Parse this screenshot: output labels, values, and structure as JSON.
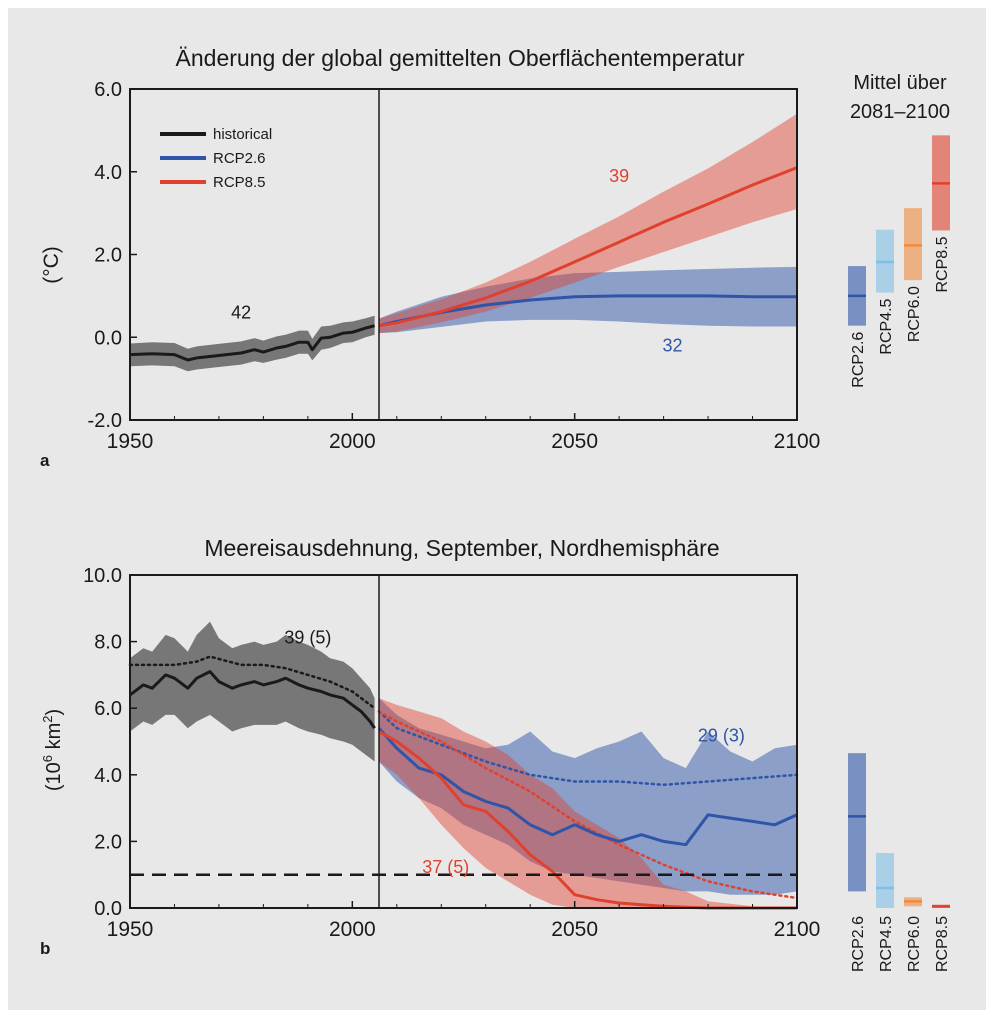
{
  "colors": {
    "historical": "#1a1a1a",
    "rcp26": "#2e55a8",
    "rcp45": "#7fc0e6",
    "rcp60": "#f08b3d",
    "rcp85": "#e0412e",
    "background": "#e8e8e8"
  },
  "chart_data": [
    {
      "type": "line",
      "panel_letter": "a",
      "title": "Änderung der global gemittelten Oberflächentemperatur",
      "ylabel": "(°C)",
      "xlim": [
        1950,
        2100
      ],
      "ylim": [
        -2.0,
        6.0
      ],
      "xticks": [
        "1950",
        "2000",
        "2050",
        "2100"
      ],
      "yticks": [
        "-2.0",
        "0.0",
        "2.0",
        "4.0",
        "6.0"
      ],
      "grid": false,
      "legend_position": "top-left",
      "legend": [
        "historical",
        "RCP2.6",
        "RCP8.5"
      ],
      "divider_year": 2006,
      "series": [
        {
          "name": "historical",
          "color": "#1a1a1a",
          "label": "42",
          "x": [
            1950,
            1955,
            1960,
            1963,
            1965,
            1970,
            1975,
            1978,
            1980,
            1983,
            1985,
            1988,
            1990,
            1991,
            1993,
            1995,
            1998,
            2000,
            2003,
            2005
          ],
          "y": [
            -0.42,
            -0.4,
            -0.42,
            -0.55,
            -0.5,
            -0.44,
            -0.38,
            -0.3,
            -0.36,
            -0.26,
            -0.22,
            -0.12,
            -0.12,
            -0.3,
            -0.02,
            0.0,
            0.1,
            0.12,
            0.22,
            0.28
          ],
          "lower": [
            -0.7,
            -0.68,
            -0.7,
            -0.82,
            -0.78,
            -0.72,
            -0.66,
            -0.58,
            -0.62,
            -0.54,
            -0.5,
            -0.4,
            -0.4,
            -0.56,
            -0.3,
            -0.26,
            -0.14,
            -0.12,
            0.0,
            0.06
          ],
          "upper": [
            -0.15,
            -0.12,
            -0.14,
            -0.28,
            -0.22,
            -0.16,
            -0.1,
            -0.02,
            -0.08,
            0.02,
            0.06,
            0.16,
            0.16,
            -0.04,
            0.26,
            0.28,
            0.36,
            0.38,
            0.46,
            0.52
          ]
        },
        {
          "name": "RCP2.6",
          "color": "#2e55a8",
          "label": "32",
          "x": [
            2006,
            2010,
            2020,
            2030,
            2040,
            2050,
            2060,
            2070,
            2080,
            2090,
            2100
          ],
          "y": [
            0.28,
            0.38,
            0.6,
            0.78,
            0.9,
            0.98,
            1.0,
            1.0,
            1.0,
            0.98,
            0.98
          ],
          "lower": [
            0.1,
            0.12,
            0.25,
            0.38,
            0.42,
            0.42,
            0.38,
            0.32,
            0.28,
            0.26,
            0.26
          ],
          "upper": [
            0.45,
            0.62,
            0.98,
            1.22,
            1.42,
            1.55,
            1.58,
            1.62,
            1.65,
            1.68,
            1.7
          ]
        },
        {
          "name": "RCP8.5",
          "color": "#e0412e",
          "label": "39",
          "x": [
            2006,
            2010,
            2020,
            2030,
            2040,
            2050,
            2060,
            2070,
            2080,
            2090,
            2100
          ],
          "y": [
            0.28,
            0.35,
            0.62,
            0.95,
            1.35,
            1.82,
            2.3,
            2.78,
            3.22,
            3.68,
            4.1
          ],
          "lower": [
            0.1,
            0.14,
            0.36,
            0.62,
            0.95,
            1.32,
            1.7,
            2.06,
            2.42,
            2.78,
            3.1
          ],
          "upper": [
            0.45,
            0.58,
            0.92,
            1.32,
            1.82,
            2.38,
            2.92,
            3.52,
            4.08,
            4.72,
            5.4
          ]
        }
      ],
      "side_bars": {
        "title_line1": "Mittel über",
        "title_line2": "2081–2100",
        "bars": [
          {
            "name": "RCP2.6",
            "color": "#2e55a8",
            "low": 0.28,
            "mean": 1.0,
            "high": 1.72
          },
          {
            "name": "RCP4.5",
            "color": "#7fc0e6",
            "low": 1.08,
            "mean": 1.82,
            "high": 2.6
          },
          {
            "name": "RCP6.0",
            "color": "#f08b3d",
            "low": 1.38,
            "mean": 2.22,
            "high": 3.12
          },
          {
            "name": "RCP8.5",
            "color": "#e0412e",
            "low": 2.58,
            "mean": 3.72,
            "high": 4.88
          }
        ]
      }
    },
    {
      "type": "line",
      "panel_letter": "b",
      "title": "Meereisausdehnung, September, Nordhemisphäre",
      "ylabel_main": "(10",
      "ylabel_sup6": "6",
      "ylabel_km": " km",
      "ylabel_sup2": "2",
      "ylabel_close": ")",
      "xlim": [
        1950,
        2100
      ],
      "ylim": [
        0.0,
        10.0
      ],
      "xticks": [
        "1950",
        "2000",
        "2050",
        "2100"
      ],
      "yticks": [
        "0.0",
        "2.0",
        "4.0",
        "6.0",
        "8.0",
        "10.0"
      ],
      "grid": false,
      "divider_year": 2006,
      "threshold": 1.0,
      "series": [
        {
          "name": "historical",
          "color": "#1a1a1a",
          "label": "39 (5)",
          "x": [
            1950,
            1953,
            1955,
            1958,
            1960,
            1963,
            1965,
            1968,
            1970,
            1973,
            1975,
            1978,
            1980,
            1983,
            1985,
            1988,
            1990,
            1993,
            1995,
            1998,
            2000,
            2002,
            2004,
            2005
          ],
          "y": [
            6.4,
            6.7,
            6.6,
            7.0,
            6.9,
            6.6,
            6.9,
            7.1,
            6.8,
            6.6,
            6.7,
            6.8,
            6.7,
            6.8,
            6.9,
            6.7,
            6.6,
            6.5,
            6.4,
            6.3,
            6.1,
            5.9,
            5.6,
            5.4
          ],
          "lower": [
            5.3,
            5.6,
            5.5,
            5.8,
            5.8,
            5.4,
            5.6,
            5.8,
            5.6,
            5.3,
            5.4,
            5.5,
            5.5,
            5.5,
            5.6,
            5.4,
            5.3,
            5.2,
            5.1,
            5.0,
            4.9,
            4.7,
            4.5,
            4.4
          ],
          "upper": [
            7.5,
            7.8,
            7.7,
            8.2,
            8.1,
            7.7,
            8.2,
            8.6,
            8.1,
            7.8,
            7.9,
            8.0,
            7.9,
            8.0,
            8.2,
            8.0,
            7.9,
            7.7,
            7.5,
            7.4,
            7.2,
            6.9,
            6.6,
            6.3
          ],
          "dotted_x": [
            1950,
            1960,
            1965,
            1968,
            1975,
            1980,
            1985,
            1990,
            1995,
            2000,
            2005
          ],
          "dotted_y": [
            7.3,
            7.3,
            7.4,
            7.55,
            7.3,
            7.3,
            7.2,
            7.0,
            6.8,
            6.5,
            6.0
          ]
        },
        {
          "name": "RCP2.6",
          "color": "#2e55a8",
          "label": "29 (3)",
          "x": [
            2006,
            2010,
            2015,
            2020,
            2025,
            2030,
            2035,
            2040,
            2045,
            2050,
            2055,
            2060,
            2065,
            2070,
            2075,
            2080,
            2085,
            2090,
            2095,
            2100
          ],
          "y": [
            5.4,
            4.8,
            4.2,
            4.0,
            3.5,
            3.2,
            3.0,
            2.5,
            2.2,
            2.5,
            2.2,
            2.0,
            2.2,
            2.0,
            1.9,
            2.8,
            2.7,
            2.6,
            2.5,
            2.8
          ],
          "lower": [
            4.4,
            3.8,
            3.3,
            3.0,
            2.5,
            2.2,
            1.9,
            1.4,
            1.1,
            1.0,
            0.9,
            0.8,
            0.7,
            0.6,
            0.5,
            0.5,
            0.4,
            0.4,
            0.4,
            0.5
          ],
          "upper": [
            6.3,
            5.8,
            5.4,
            5.2,
            5.0,
            4.8,
            4.9,
            5.3,
            4.7,
            4.5,
            4.8,
            5.0,
            5.3,
            4.5,
            4.2,
            5.3,
            4.7,
            4.4,
            4.8,
            4.9
          ],
          "dotted_x": [
            2006,
            2010,
            2020,
            2030,
            2040,
            2050,
            2060,
            2070,
            2080,
            2090,
            2100
          ],
          "dotted_y": [
            5.9,
            5.4,
            4.9,
            4.4,
            4.0,
            3.8,
            3.8,
            3.7,
            3.8,
            3.9,
            4.0
          ]
        },
        {
          "name": "RCP8.5",
          "color": "#e0412e",
          "label": "37 (5)",
          "x": [
            2006,
            2010,
            2015,
            2020,
            2025,
            2030,
            2035,
            2040,
            2045,
            2050,
            2055,
            2060,
            2065,
            2070,
            2075,
            2080,
            2090,
            2100
          ],
          "y": [
            5.3,
            5.0,
            4.5,
            3.9,
            3.1,
            2.9,
            2.3,
            1.6,
            1.1,
            0.4,
            0.25,
            0.15,
            0.1,
            0.05,
            0.02,
            0.0,
            0.0,
            0.0
          ],
          "lower": [
            4.4,
            4.0,
            3.3,
            2.5,
            1.8,
            1.2,
            0.8,
            0.4,
            0.1,
            0.0,
            0.0,
            0.0,
            0.0,
            0.0,
            0.0,
            0.0,
            0.0,
            0.0
          ],
          "upper": [
            6.3,
            6.1,
            5.9,
            5.7,
            5.3,
            5.0,
            4.6,
            4.0,
            3.6,
            2.9,
            2.5,
            2.1,
            1.5,
            0.7,
            0.5,
            0.2,
            0.05,
            0.02
          ],
          "dotted_x": [
            2006,
            2010,
            2020,
            2030,
            2040,
            2050,
            2060,
            2070,
            2080,
            2090,
            2100
          ],
          "dotted_y": [
            5.9,
            5.6,
            5.0,
            4.2,
            3.5,
            2.6,
            1.9,
            1.3,
            0.8,
            0.5,
            0.3
          ]
        }
      ],
      "side_bars": {
        "bars": [
          {
            "name": "RCP2.6",
            "color": "#2e55a8",
            "low": 0.5,
            "mean": 2.75,
            "high": 4.65
          },
          {
            "name": "RCP4.5",
            "color": "#7fc0e6",
            "low": 0.0,
            "mean": 0.6,
            "high": 1.65
          },
          {
            "name": "RCP6.0",
            "color": "#f08b3d",
            "low": 0.05,
            "mean": 0.2,
            "high": 0.32
          },
          {
            "name": "RCP8.5",
            "color": "#e0412e",
            "low": 0.0,
            "mean": 0.05,
            "high": 0.1
          }
        ]
      }
    }
  ]
}
